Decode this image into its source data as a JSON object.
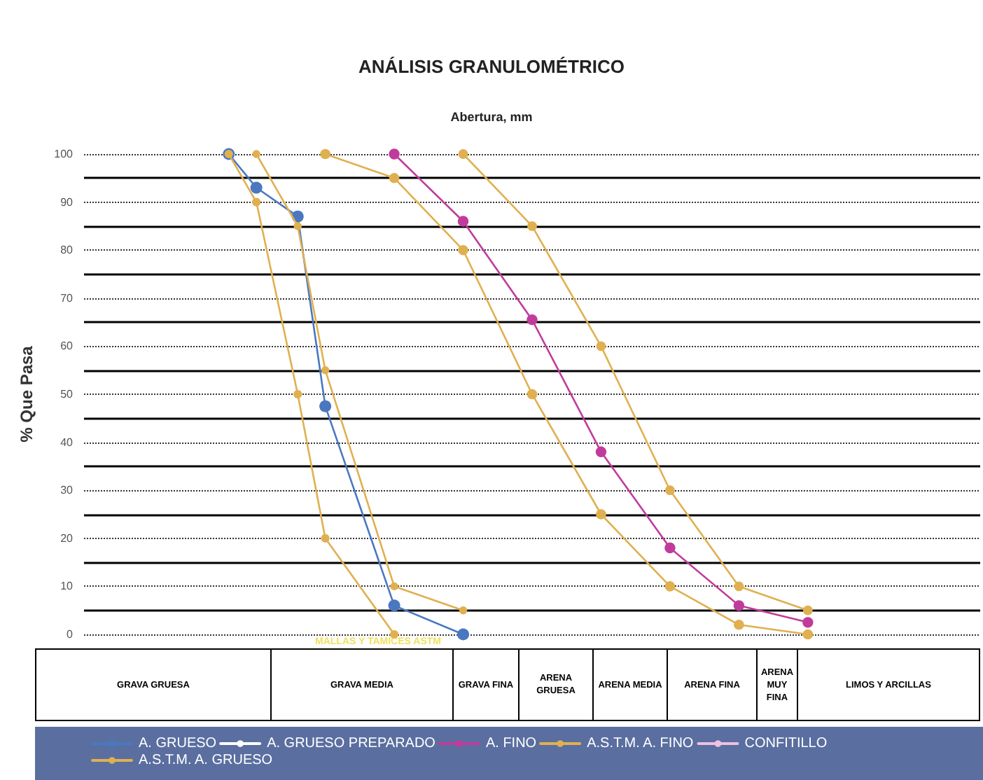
{
  "chart_data": {
    "type": "line",
    "title": "ANÁLISIS GRANULOMÉTRICO",
    "xlabel": "Abertura, mm",
    "ylabel": "% Que Pasa",
    "categories": [
      null,
      null,
      null,
      null,
      null,
      null,
      null,
      null,
      null,
      null,
      null,
      null,
      null,
      null,
      null,
      null,
      null,
      null,
      null,
      null,
      null,
      null,
      null,
      null,
      null,
      null,
      null,
      null,
      null,
      null,
      null,
      null,
      null,
      null,
      null,
      null,
      null,
      null,
      null,
      null,
      null,
      null,
      null,
      null,
      null,
      null,
      null,
      null,
      null,
      null,
      null,
      null,
      null,
      null,
      null,
      null,
      null,
      null,
      null,
      null,
      null,
      null,
      null,
      null,
      null
    ],
    "ylim": [
      0,
      100
    ],
    "yticks": [
      0,
      10,
      20,
      30,
      40,
      50,
      60,
      70,
      80,
      90,
      100
    ],
    "tick_labels": "y",
    "grid": "y",
    "legend": "bottom",
    "marker": "circle",
    "line_style": "solid",
    "series": [
      {
        "name": "A. GRUESO",
        "color": "#4a78c0",
        "values": [
          null,
          null,
          null,
          null,
          null,
          null,
          null,
          null,
          null,
          null,
          100,
          null,
          93,
          null,
          null,
          87,
          null,
          47.5,
          null,
          null,
          null,
          null,
          6,
          null,
          null,
          null,
          null,
          0,
          null,
          null,
          null,
          null,
          null,
          null,
          null,
          null,
          null,
          null,
          null,
          null,
          null,
          null,
          null,
          null,
          null,
          null,
          null,
          null,
          null,
          null,
          null,
          null,
          null,
          null,
          null,
          null,
          null,
          null,
          null,
          null,
          null,
          null,
          null,
          null,
          null
        ]
      },
      {
        "name": "A. GRUESO PREPARADO",
        "color": "#ffffff",
        "values": [
          null,
          null,
          null,
          null,
          null,
          null,
          null,
          null,
          null,
          null,
          null,
          null,
          null,
          null,
          null,
          null,
          null,
          null,
          null,
          null,
          null,
          null,
          null,
          null,
          null,
          null,
          null,
          null,
          null,
          null,
          null,
          null,
          null,
          null,
          null,
          null,
          null,
          null,
          null,
          null,
          null,
          null,
          null,
          null,
          null,
          null,
          null,
          null,
          null,
          null,
          null,
          null,
          null,
          null,
          null,
          null,
          null,
          null,
          null,
          null,
          null,
          null,
          null,
          null,
          null
        ]
      },
      {
        "name": "A. FINO",
        "color": "#c03c9c",
        "values": [
          null,
          null,
          null,
          null,
          null,
          null,
          null,
          null,
          null,
          null,
          null,
          null,
          null,
          null,
          null,
          null,
          null,
          null,
          null,
          null,
          null,
          null,
          100,
          null,
          null,
          null,
          null,
          86,
          null,
          null,
          null,
          null,
          65.5,
          null,
          null,
          null,
          null,
          38,
          null,
          null,
          null,
          null,
          18,
          null,
          null,
          null,
          null,
          6,
          null,
          null,
          null,
          null,
          2.5,
          null,
          null,
          null,
          null,
          null,
          null,
          null,
          null,
          null,
          null,
          null,
          null
        ]
      },
      {
        "name": "A.S.T.M. A. FINO",
        "color": "#e0b050",
        "values": [
          null,
          null,
          null,
          null,
          null,
          null,
          null,
          null,
          null,
          null,
          null,
          null,
          null,
          null,
          null,
          null,
          null,
          100,
          null,
          null,
          null,
          null,
          95,
          null,
          null,
          null,
          null,
          80,
          null,
          null,
          null,
          null,
          50,
          null,
          null,
          null,
          null,
          25,
          null,
          null,
          null,
          null,
          10,
          null,
          null,
          null,
          null,
          2,
          null,
          null,
          null,
          null,
          0,
          null,
          null,
          null,
          null,
          null,
          null,
          null,
          null,
          null,
          null,
          null,
          null
        ]
      },
      {
        "color": "#e0b050",
        "values": [
          null,
          null,
          null,
          null,
          null,
          null,
          null,
          null,
          null,
          null,
          null,
          null,
          null,
          null,
          null,
          null,
          null,
          null,
          null,
          null,
          null,
          null,
          null,
          null,
          null,
          null,
          null,
          100,
          null,
          null,
          null,
          null,
          85,
          null,
          null,
          null,
          null,
          60,
          null,
          null,
          null,
          null,
          30,
          null,
          null,
          null,
          null,
          10,
          null,
          null,
          null,
          null,
          5,
          null,
          null,
          null,
          null,
          null,
          null,
          null,
          null,
          null,
          null,
          null,
          null
        ]
      },
      {
        "name": "CONFITILLO",
        "color": "#f0c0e0",
        "values": [
          null,
          null,
          null,
          null,
          null,
          null,
          null,
          null,
          null,
          null,
          null,
          null,
          null,
          null,
          null,
          null,
          null,
          null,
          null,
          null,
          null,
          null,
          null,
          null,
          null,
          null,
          null,
          null,
          null,
          null,
          null,
          null,
          null,
          null,
          null,
          null,
          null,
          null,
          null,
          null,
          null,
          null,
          null,
          null,
          null,
          null,
          null,
          null,
          null,
          null,
          null,
          null,
          null,
          null,
          null,
          null,
          null,
          null,
          null,
          null,
          null,
          null,
          null,
          null,
          null
        ]
      },
      {
        "name": "A.S.T.M. A. GRUESO",
        "color": "#e0b050",
        "values": [
          null,
          null,
          null,
          null,
          null,
          null,
          null,
          null,
          null,
          null,
          100,
          null,
          90,
          null,
          null,
          50,
          null,
          20,
          null,
          null,
          null,
          null,
          0,
          null,
          null,
          null,
          null,
          null,
          null,
          null,
          null,
          null,
          null,
          null,
          null,
          null,
          null,
          null,
          null,
          null,
          null,
          null,
          null,
          null,
          null,
          null,
          null,
          null,
          null,
          null,
          null,
          null,
          null,
          null,
          null,
          null,
          null,
          null,
          null,
          null,
          null,
          null,
          null,
          null,
          null
        ]
      },
      {
        "color": "#e0b050",
        "values": [
          null,
          null,
          null,
          null,
          null,
          null,
          null,
          null,
          null,
          null,
          null,
          null,
          100,
          null,
          null,
          85,
          null,
          55,
          null,
          null,
          null,
          null,
          10,
          null,
          null,
          null,
          null,
          5,
          null,
          null,
          null,
          null,
          null,
          null,
          null,
          null,
          null,
          null,
          null,
          null,
          null,
          null,
          null,
          null,
          null,
          null,
          null,
          null,
          null,
          null,
          null,
          null,
          null,
          null,
          null,
          null,
          null,
          null,
          null,
          null,
          null,
          null,
          null,
          null,
          null
        ]
      }
    ],
    "annotations": [
      "MALLAS Y TAMICES ASTM",
      "GRAVA GRUESA",
      "GRAVA MEDIA",
      "GRAVA FINA",
      "ARENA GRUESA",
      "ARENA MEDIA",
      "ARENA FINA",
      "ARENA MUY FINA",
      "LIMOS Y ARCILLAS"
    ]
  }
}
